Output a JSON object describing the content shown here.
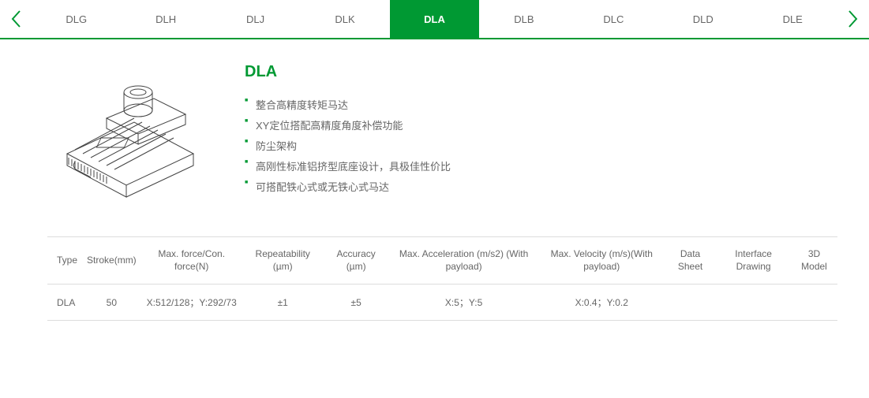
{
  "accent_color": "#009933",
  "tabs": {
    "items": [
      {
        "label": "DLG"
      },
      {
        "label": "DLH"
      },
      {
        "label": "DLJ"
      },
      {
        "label": "DLK"
      },
      {
        "label": "DLA"
      },
      {
        "label": "DLB"
      },
      {
        "label": "DLC"
      },
      {
        "label": "DLD"
      },
      {
        "label": "DLE"
      }
    ],
    "active_index": 4
  },
  "product": {
    "title": "DLA",
    "features": [
      "整合高精度转矩马达",
      "XY定位搭配高精度角度补偿功能",
      "防尘架构",
      "高刚性标准铝挤型底座设计，具极佳性价比",
      "可搭配铁心式或无铁心式马达"
    ]
  },
  "specs": {
    "headers": [
      "Type",
      "Stroke(mm)",
      "Max. force/Con. force(N)",
      "Repeatability (µm)",
      "Accuracy (µm)",
      "Max. Acceleration (m/s2) (With payload)",
      "Max. Velocity (m/s)(With payload)",
      "Data Sheet",
      "Interface Drawing",
      "3D Model"
    ],
    "rows": [
      {
        "cells": [
          "DLA",
          "50",
          "X:512/128；Y:292/73",
          "±1",
          "±5",
          "X:5；Y:5",
          "X:0.4；Y:0.2",
          "",
          "",
          ""
        ]
      }
    ]
  }
}
